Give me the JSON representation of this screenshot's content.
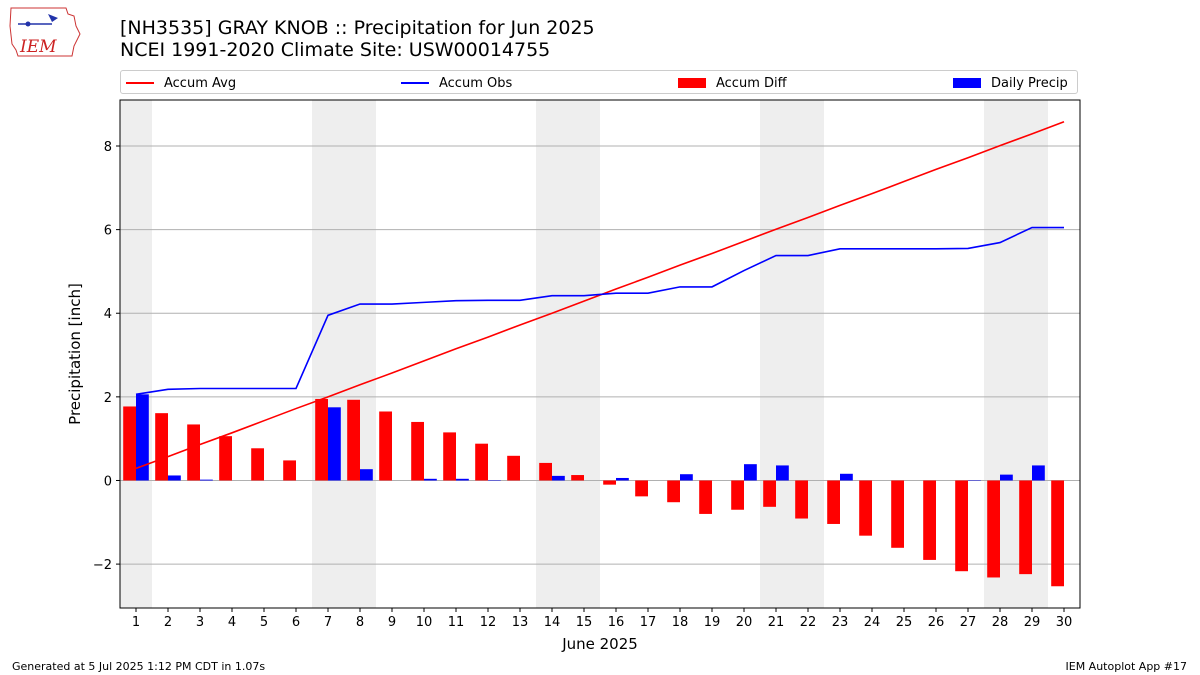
{
  "header": {
    "title_line1": "[NH3535] GRAY KNOB :: Precipitation for Jun 2025",
    "title_line2": "NCEI 1991-2020 Climate Site: USW00014755",
    "logo_text": "IEM"
  },
  "legend": {
    "placement": "top",
    "items": [
      {
        "label": "Accum Avg",
        "kind": "line",
        "color": "#ff0000"
      },
      {
        "label": "Accum Obs",
        "kind": "line",
        "color": "#0000ff"
      },
      {
        "label": "Accum Diff",
        "kind": "bar",
        "color": "#ff0000"
      },
      {
        "label": "Daily Precip",
        "kind": "bar",
        "color": "#0000ff"
      }
    ]
  },
  "footer": {
    "left": "Generated at 5 Jul 2025 1:12 PM CDT in 1.07s",
    "right": "IEM Autoplot App #17"
  },
  "chart_data": {
    "type": "bar",
    "xlabel": "June 2025",
    "ylabel": "Precipitation [inch]",
    "xlim": [
      0.5,
      30.5
    ],
    "ylim": [
      -3.05,
      9.1
    ],
    "yticks": [
      -2,
      0,
      2,
      4,
      6,
      8
    ],
    "grid": "horizontal",
    "weekend_shading_days": [
      1,
      7,
      8,
      14,
      15,
      21,
      22,
      28,
      29
    ],
    "categories": [
      1,
      2,
      3,
      4,
      5,
      6,
      7,
      8,
      9,
      10,
      11,
      12,
      13,
      14,
      15,
      16,
      17,
      18,
      19,
      20,
      21,
      22,
      23,
      24,
      25,
      26,
      27,
      28,
      29,
      30
    ],
    "series": [
      {
        "name": "Accum Avg",
        "type": "line",
        "color": "#ff0000",
        "values": [
          0.29,
          0.57,
          0.86,
          1.14,
          1.43,
          1.72,
          2.0,
          2.29,
          2.57,
          2.86,
          3.15,
          3.43,
          3.72,
          4.0,
          4.29,
          4.58,
          4.86,
          5.15,
          5.43,
          5.72,
          6.01,
          6.29,
          6.58,
          6.86,
          7.15,
          7.44,
          7.72,
          8.01,
          8.29,
          8.58
        ]
      },
      {
        "name": "Accum Obs",
        "type": "line",
        "color": "#0000ff",
        "values": [
          2.06,
          2.18,
          2.2,
          2.2,
          2.2,
          2.2,
          3.95,
          4.22,
          4.22,
          4.26,
          4.3,
          4.31,
          4.31,
          4.42,
          4.42,
          4.48,
          4.48,
          4.63,
          4.63,
          5.02,
          5.38,
          5.38,
          5.54,
          5.54,
          5.54,
          5.54,
          5.55,
          5.69,
          6.05,
          6.05
        ]
      },
      {
        "name": "Accum Diff",
        "type": "bar",
        "color": "#ff0000",
        "values": [
          1.77,
          1.61,
          1.34,
          1.06,
          0.77,
          0.48,
          1.95,
          1.93,
          1.65,
          1.4,
          1.15,
          0.88,
          0.59,
          0.42,
          0.13,
          -0.1,
          -0.38,
          -0.52,
          -0.8,
          -0.7,
          -0.63,
          -0.91,
          -1.04,
          -1.32,
          -1.61,
          -1.9,
          -2.17,
          -2.32,
          -2.24,
          -2.53
        ]
      },
      {
        "name": "Daily Precip",
        "type": "bar",
        "color": "#0000ff",
        "values": [
          2.06,
          0.12,
          0.02,
          0,
          0,
          0,
          1.75,
          0.27,
          0,
          0.04,
          0.04,
          0.01,
          0,
          0.11,
          0,
          0.06,
          0,
          0.15,
          0,
          0.39,
          0.36,
          0,
          0.16,
          0,
          0,
          0,
          0.01,
          0.14,
          0.36,
          0
        ]
      }
    ]
  }
}
